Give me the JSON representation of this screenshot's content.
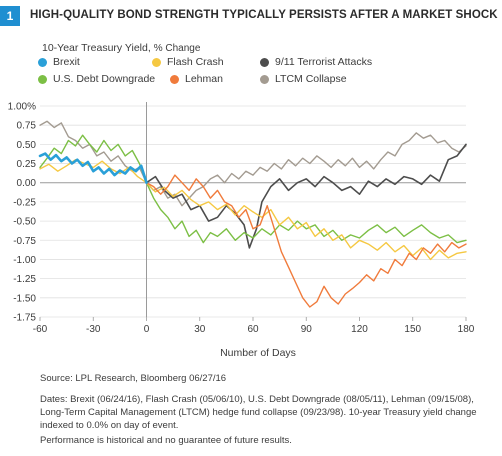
{
  "header": {
    "badge": "1",
    "title": "HIGH-QUALITY BOND STRENGTH TYPICALLY PERSISTS AFTER A MARKET SHOCK"
  },
  "chart_data": {
    "type": "line",
    "title": "10-Year Treasury Yield,",
    "unit_label": "% Change",
    "xlabel": "Number of Days",
    "ylabel": "",
    "xlim": [
      -60,
      180
    ],
    "ylim": [
      -1.75,
      1.0
    ],
    "x_ticks": [
      -60,
      -30,
      0,
      30,
      60,
      90,
      120,
      150,
      180
    ],
    "x_tick_labels": [
      "-60",
      "-30",
      "0",
      "30",
      "60",
      "90",
      "120",
      "150",
      "180"
    ],
    "y_ticks": [
      1.0,
      0.75,
      0.5,
      0.25,
      0.0,
      -0.25,
      -0.5,
      -0.75,
      -1.0,
      -1.25,
      -1.5,
      -1.75
    ],
    "y_tick_labels": [
      "1.00%",
      "0.75",
      "0.50",
      "0.25",
      "0.00",
      "-0.25",
      "-0.50",
      "-0.75",
      "-1.00",
      "-1.25",
      "-1.50",
      "-1.75"
    ],
    "legend_position": "top",
    "series": [
      {
        "name": "Brexit",
        "color": "#2aa0d8",
        "width": 2.6,
        "points": [
          [
            -60,
            0.35
          ],
          [
            -57,
            0.38
          ],
          [
            -54,
            0.3
          ],
          [
            -51,
            0.36
          ],
          [
            -48,
            0.28
          ],
          [
            -45,
            0.33
          ],
          [
            -42,
            0.25
          ],
          [
            -39,
            0.3
          ],
          [
            -36,
            0.22
          ],
          [
            -33,
            0.27
          ],
          [
            -30,
            0.15
          ],
          [
            -27,
            0.2
          ],
          [
            -24,
            0.12
          ],
          [
            -21,
            0.18
          ],
          [
            -18,
            0.1
          ],
          [
            -15,
            0.16
          ],
          [
            -12,
            0.12
          ],
          [
            -9,
            0.2
          ],
          [
            -6,
            0.15
          ],
          [
            -3,
            0.22
          ],
          [
            0,
            0.0
          ]
        ]
      },
      {
        "name": "Flash Crash",
        "color": "#f5c842",
        "width": 1.4,
        "points": [
          [
            -60,
            0.18
          ],
          [
            -55,
            0.24
          ],
          [
            -50,
            0.15
          ],
          [
            -45,
            0.22
          ],
          [
            -40,
            0.3
          ],
          [
            -35,
            0.25
          ],
          [
            -30,
            0.2
          ],
          [
            -25,
            0.28
          ],
          [
            -20,
            0.18
          ],
          [
            -15,
            0.12
          ],
          [
            -10,
            0.2
          ],
          [
            -5,
            0.08
          ],
          [
            0,
            0.0
          ],
          [
            5,
            -0.12
          ],
          [
            10,
            -0.06
          ],
          [
            15,
            -0.18
          ],
          [
            20,
            -0.1
          ],
          [
            25,
            -0.22
          ],
          [
            30,
            -0.3
          ],
          [
            35,
            -0.25
          ],
          [
            40,
            -0.35
          ],
          [
            45,
            -0.28
          ],
          [
            50,
            -0.42
          ],
          [
            55,
            -0.3
          ],
          [
            60,
            -0.38
          ],
          [
            65,
            -0.45
          ],
          [
            70,
            -0.35
          ],
          [
            75,
            -0.55
          ],
          [
            80,
            -0.45
          ],
          [
            85,
            -0.6
          ],
          [
            90,
            -0.52
          ],
          [
            95,
            -0.7
          ],
          [
            100,
            -0.6
          ],
          [
            105,
            -0.75
          ],
          [
            110,
            -0.68
          ],
          [
            115,
            -0.85
          ],
          [
            120,
            -0.75
          ],
          [
            125,
            -0.8
          ],
          [
            130,
            -0.88
          ],
          [
            135,
            -0.78
          ],
          [
            140,
            -0.9
          ],
          [
            145,
            -0.82
          ],
          [
            150,
            -0.95
          ],
          [
            155,
            -0.85
          ],
          [
            160,
            -1.0
          ],
          [
            165,
            -0.88
          ],
          [
            170,
            -0.98
          ],
          [
            175,
            -0.92
          ],
          [
            180,
            -0.9
          ]
        ]
      },
      {
        "name": "9/11 Terrorist Attacks",
        "color": "#4d4d4d",
        "width": 1.6,
        "points": [
          [
            0,
            0.0
          ],
          [
            5,
            0.08
          ],
          [
            10,
            -0.1
          ],
          [
            15,
            -0.2
          ],
          [
            20,
            -0.15
          ],
          [
            25,
            -0.35
          ],
          [
            30,
            -0.3
          ],
          [
            35,
            -0.5
          ],
          [
            40,
            -0.45
          ],
          [
            45,
            -0.3
          ],
          [
            50,
            -0.4
          ],
          [
            55,
            -0.55
          ],
          [
            58,
            -0.85
          ],
          [
            62,
            -0.6
          ],
          [
            65,
            -0.25
          ],
          [
            70,
            -0.05
          ],
          [
            75,
            0.05
          ],
          [
            80,
            -0.1
          ],
          [
            85,
            0.0
          ],
          [
            90,
            0.05
          ],
          [
            95,
            -0.05
          ],
          [
            100,
            0.08
          ],
          [
            105,
            0.0
          ],
          [
            110,
            -0.1
          ],
          [
            115,
            -0.05
          ],
          [
            120,
            -0.15
          ],
          [
            125,
            0.02
          ],
          [
            130,
            -0.05
          ],
          [
            135,
            0.05
          ],
          [
            140,
            -0.02
          ],
          [
            145,
            0.08
          ],
          [
            150,
            0.05
          ],
          [
            155,
            -0.02
          ],
          [
            160,
            0.1
          ],
          [
            165,
            0.02
          ],
          [
            170,
            0.3
          ],
          [
            175,
            0.35
          ],
          [
            180,
            0.5
          ]
        ]
      },
      {
        "name": "U.S. Debt Downgrade",
        "color": "#7cbf45",
        "width": 1.4,
        "points": [
          [
            -60,
            0.2
          ],
          [
            -56,
            0.32
          ],
          [
            -52,
            0.45
          ],
          [
            -48,
            0.38
          ],
          [
            -44,
            0.55
          ],
          [
            -40,
            0.48
          ],
          [
            -36,
            0.62
          ],
          [
            -32,
            0.5
          ],
          [
            -28,
            0.4
          ],
          [
            -24,
            0.55
          ],
          [
            -20,
            0.42
          ],
          [
            -16,
            0.5
          ],
          [
            -12,
            0.35
          ],
          [
            -8,
            0.42
          ],
          [
            -4,
            0.25
          ],
          [
            0,
            0.0
          ],
          [
            4,
            -0.2
          ],
          [
            8,
            -0.35
          ],
          [
            12,
            -0.45
          ],
          [
            16,
            -0.6
          ],
          [
            20,
            -0.5
          ],
          [
            24,
            -0.7
          ],
          [
            28,
            -0.62
          ],
          [
            32,
            -0.78
          ],
          [
            36,
            -0.65
          ],
          [
            40,
            -0.7
          ],
          [
            45,
            -0.6
          ],
          [
            50,
            -0.75
          ],
          [
            55,
            -0.65
          ],
          [
            60,
            -0.72
          ],
          [
            65,
            -0.6
          ],
          [
            70,
            -0.68
          ],
          [
            75,
            -0.55
          ],
          [
            80,
            -0.62
          ],
          [
            85,
            -0.5
          ],
          [
            90,
            -0.6
          ],
          [
            95,
            -0.55
          ],
          [
            100,
            -0.7
          ],
          [
            105,
            -0.62
          ],
          [
            110,
            -0.75
          ],
          [
            115,
            -0.68
          ],
          [
            120,
            -0.72
          ],
          [
            125,
            -0.62
          ],
          [
            130,
            -0.55
          ],
          [
            135,
            -0.65
          ],
          [
            140,
            -0.58
          ],
          [
            145,
            -0.7
          ],
          [
            150,
            -0.62
          ],
          [
            155,
            -0.55
          ],
          [
            160,
            -0.65
          ],
          [
            165,
            -0.72
          ],
          [
            170,
            -0.68
          ],
          [
            175,
            -0.78
          ],
          [
            180,
            -0.75
          ]
        ]
      },
      {
        "name": "Lehman",
        "color": "#f07b3c",
        "width": 1.4,
        "points": [
          [
            0,
            0.0
          ],
          [
            4,
            -0.05
          ],
          [
            8,
            -0.15
          ],
          [
            12,
            -0.05
          ],
          [
            16,
            0.1
          ],
          [
            20,
            0.0
          ],
          [
            24,
            -0.1
          ],
          [
            28,
            0.05
          ],
          [
            32,
            -0.05
          ],
          [
            36,
            -0.2
          ],
          [
            40,
            -0.1
          ],
          [
            44,
            -0.25
          ],
          [
            48,
            -0.3
          ],
          [
            52,
            -0.45
          ],
          [
            56,
            -0.35
          ],
          [
            60,
            -0.6
          ],
          [
            64,
            -0.55
          ],
          [
            68,
            -0.3
          ],
          [
            72,
            -0.6
          ],
          [
            76,
            -0.9
          ],
          [
            80,
            -1.1
          ],
          [
            84,
            -1.3
          ],
          [
            88,
            -1.5
          ],
          [
            92,
            -1.62
          ],
          [
            96,
            -1.55
          ],
          [
            100,
            -1.35
          ],
          [
            104,
            -1.5
          ],
          [
            108,
            -1.58
          ],
          [
            112,
            -1.45
          ],
          [
            116,
            -1.38
          ],
          [
            120,
            -1.3
          ],
          [
            124,
            -1.2
          ],
          [
            128,
            -1.28
          ],
          [
            132,
            -1.12
          ],
          [
            136,
            -1.18
          ],
          [
            140,
            -1.0
          ],
          [
            144,
            -1.08
          ],
          [
            148,
            -0.92
          ],
          [
            152,
            -1.0
          ],
          [
            156,
            -0.85
          ],
          [
            160,
            -0.92
          ],
          [
            164,
            -0.8
          ],
          [
            168,
            -0.9
          ],
          [
            172,
            -0.78
          ],
          [
            176,
            -0.85
          ],
          [
            180,
            -0.8
          ]
        ]
      },
      {
        "name": "LTCM Collapse",
        "color": "#a39b91",
        "width": 1.4,
        "points": [
          [
            -60,
            0.75
          ],
          [
            -56,
            0.8
          ],
          [
            -52,
            0.72
          ],
          [
            -48,
            0.78
          ],
          [
            -44,
            0.6
          ],
          [
            -40,
            0.55
          ],
          [
            -36,
            0.45
          ],
          [
            -32,
            0.5
          ],
          [
            -28,
            0.35
          ],
          [
            -24,
            0.4
          ],
          [
            -20,
            0.28
          ],
          [
            -16,
            0.35
          ],
          [
            -12,
            0.22
          ],
          [
            -8,
            0.15
          ],
          [
            -4,
            0.2
          ],
          [
            0,
            0.0
          ],
          [
            4,
            -0.1
          ],
          [
            8,
            -0.05
          ],
          [
            12,
            -0.2
          ],
          [
            16,
            -0.15
          ],
          [
            20,
            -0.3
          ],
          [
            24,
            -0.2
          ],
          [
            28,
            -0.1
          ],
          [
            32,
            -0.05
          ],
          [
            36,
            0.05
          ],
          [
            40,
            0.1
          ],
          [
            44,
            0.0
          ],
          [
            48,
            0.12
          ],
          [
            52,
            0.05
          ],
          [
            56,
            0.15
          ],
          [
            60,
            0.1
          ],
          [
            64,
            0.2
          ],
          [
            68,
            0.15
          ],
          [
            72,
            0.25
          ],
          [
            76,
            0.18
          ],
          [
            80,
            0.3
          ],
          [
            84,
            0.22
          ],
          [
            88,
            0.32
          ],
          [
            92,
            0.25
          ],
          [
            96,
            0.35
          ],
          [
            100,
            0.28
          ],
          [
            104,
            0.2
          ],
          [
            108,
            0.3
          ],
          [
            112,
            0.22
          ],
          [
            116,
            0.32
          ],
          [
            120,
            0.2
          ],
          [
            124,
            0.28
          ],
          [
            128,
            0.18
          ],
          [
            132,
            0.3
          ],
          [
            136,
            0.4
          ],
          [
            140,
            0.35
          ],
          [
            144,
            0.5
          ],
          [
            148,
            0.55
          ],
          [
            152,
            0.65
          ],
          [
            156,
            0.58
          ],
          [
            160,
            0.62
          ],
          [
            164,
            0.52
          ],
          [
            168,
            0.55
          ],
          [
            172,
            0.45
          ],
          [
            176,
            0.4
          ],
          [
            180,
            0.48
          ]
        ]
      }
    ]
  },
  "footer": {
    "source": "Source: LPL Research, Bloomberg   06/27/16",
    "notes": "Dates: Brexit (06/24/16), Flash Crash (05/06/10), U.S. Debt Downgrade (08/05/11), Lehman (09/15/08), Long-Term Capital Management (LTCM) hedge fund collapse (09/23/98). 10-year Treasury yield change indexed to 0.0% on day of event.",
    "disclaimer": "Performance is historical and no guarantee of future results."
  }
}
